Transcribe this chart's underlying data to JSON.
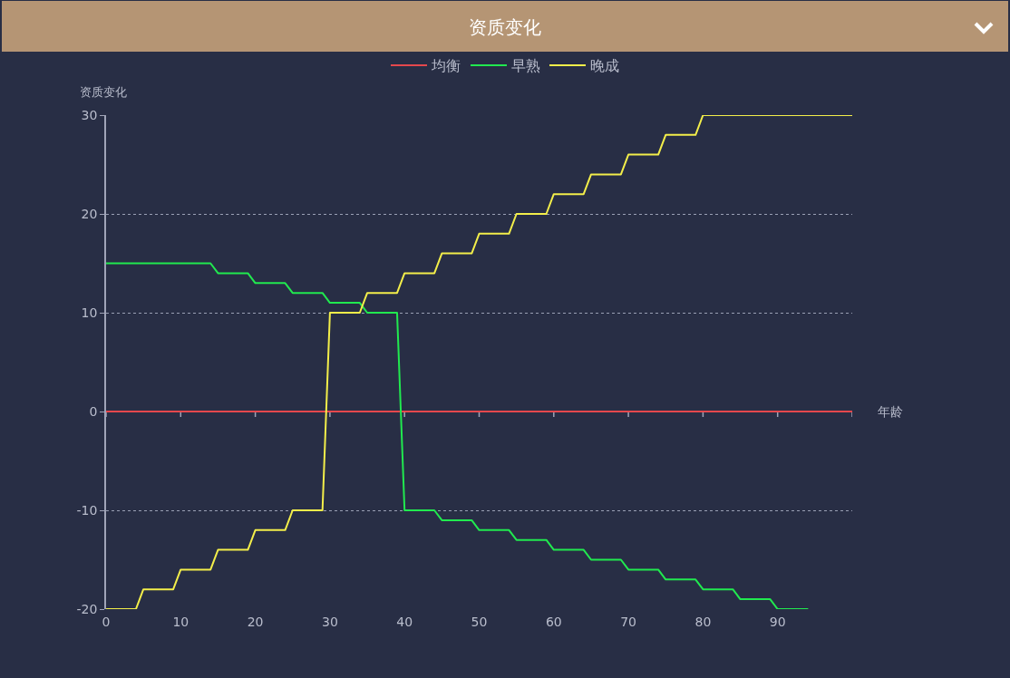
{
  "chart_data": {
    "type": "line",
    "title": "资质变化",
    "xlabel": "年龄",
    "ylabel": "资质变化",
    "xlim": [
      0,
      100
    ],
    "xticks": [
      0,
      10,
      20,
      30,
      40,
      50,
      60,
      70,
      80,
      90,
      {
        "value": 100,
        "label": null
      }
    ],
    "ylim": [
      -20,
      30
    ],
    "yticks": [
      -20,
      -10,
      0,
      10,
      20,
      30
    ],
    "grid": "y",
    "legend": "top",
    "line_style": "solid",
    "series": [
      {
        "name": "均衡",
        "color": "#e5484d",
        "x": [
          0,
          100
        ],
        "values": [
          0,
          0
        ]
      },
      {
        "name": "早熟",
        "color": "#21e94f",
        "x": [
          0,
          14,
          15,
          19,
          20,
          24,
          25,
          29,
          30,
          34,
          35,
          39,
          40,
          44,
          45,
          49,
          50,
          54,
          55,
          59,
          60,
          64,
          65,
          69,
          70,
          74,
          75,
          79,
          80,
          84,
          85,
          89,
          90,
          94
        ],
        "values": [
          15,
          15,
          14,
          14,
          13,
          13,
          12,
          12,
          11,
          11,
          10,
          10,
          -10,
          -10,
          -11,
          -11,
          -12,
          -12,
          -13,
          -13,
          -14,
          -14,
          -15,
          -15,
          -16,
          -16,
          -17,
          -17,
          -18,
          -18,
          -19,
          -19,
          -20,
          -20
        ]
      },
      {
        "name": "晚成",
        "color": "#f3ee4a",
        "x": [
          0,
          4,
          5,
          9,
          10,
          14,
          15,
          19,
          20,
          24,
          25,
          29,
          30,
          34,
          35,
          39,
          40,
          44,
          45,
          49,
          50,
          54,
          55,
          59,
          60,
          64,
          65,
          69,
          70,
          74,
          75,
          79,
          80,
          100
        ],
        "values": [
          -20,
          -20,
          -18,
          -18,
          -16,
          -16,
          -14,
          -14,
          -12,
          -12,
          -10,
          -10,
          10,
          10,
          12,
          12,
          14,
          14,
          16,
          16,
          18,
          18,
          20,
          20,
          22,
          22,
          24,
          24,
          26,
          26,
          28,
          28,
          30,
          30
        ]
      }
    ]
  }
}
